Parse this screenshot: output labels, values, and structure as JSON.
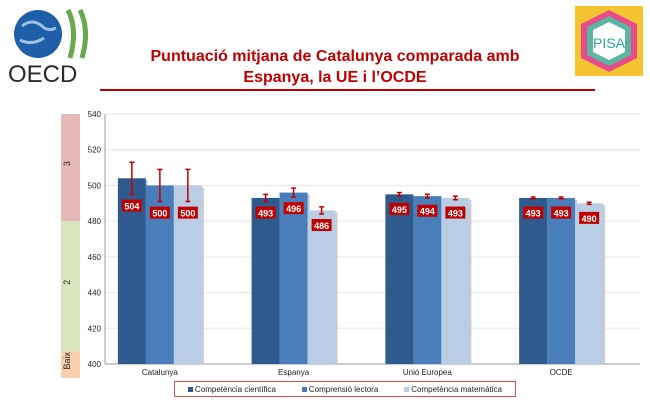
{
  "header": {
    "title_line1": "Puntuació mitjana de Catalunya comparada amb",
    "title_line2": "Espanya, la UE i l’OCDE",
    "logo_left": "OECD",
    "logo_right": "PISA"
  },
  "chart_data": {
    "type": "bar",
    "title": "Puntuació mitjana de Catalunya comparada amb Espanya, la UE i l’OCDE",
    "categories": [
      "Catalunya",
      "Espanya",
      "Unió Europea",
      "OCDE"
    ],
    "ylim": [
      400,
      540
    ],
    "yticks": [
      400,
      420,
      440,
      460,
      480,
      500,
      520,
      540
    ],
    "grid": true,
    "legend": "bottom",
    "bands": [
      {
        "label": "Baix",
        "from": 400,
        "to": 407,
        "color": "#f9cfae"
      },
      {
        "label": "2",
        "from": 407,
        "to": 480,
        "color": "#d8e4bc"
      },
      {
        "label": "3",
        "from": 480,
        "to": 540,
        "color": "#e6b9b8"
      }
    ],
    "series": [
      {
        "name": "Competència científica",
        "color": "#2f5a8e",
        "values": [
          504,
          493,
          495,
          493
        ],
        "errors": [
          9,
          2,
          1,
          0.5
        ]
      },
      {
        "name": "Comprensió lectora",
        "color": "#4a7ebb",
        "values": [
          500,
          496,
          494,
          493
        ],
        "errors": [
          9,
          2.5,
          1,
          0.5
        ]
      },
      {
        "name": "Competència matemàtica",
        "color": "#b9cde5",
        "values": [
          500,
          486,
          493,
          490
        ],
        "errors": [
          9,
          2,
          1,
          0.6
        ]
      }
    ],
    "label_color": "#c00000",
    "error_color": "#c00000"
  }
}
